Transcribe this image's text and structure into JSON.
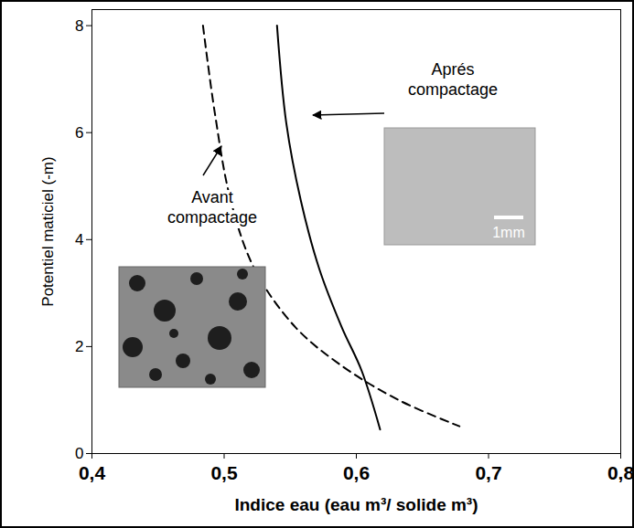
{
  "chart_data": {
    "type": "line",
    "x_label": "Indice eau (eau m³/ solide m³)",
    "y_label": "Potentiel maticiel (-m)",
    "xlim": [
      0.4,
      0.8
    ],
    "ylim": [
      0,
      8.3
    ],
    "xticks": [
      {
        "value": 0.4,
        "label": "0,4"
      },
      {
        "value": 0.5,
        "label": "0,5"
      },
      {
        "value": 0.6,
        "label": "0,6"
      },
      {
        "value": 0.7,
        "label": "0,7"
      },
      {
        "value": 0.8,
        "label": "0,8"
      }
    ],
    "yticks": [
      0,
      2,
      4,
      6,
      8
    ],
    "grid": false,
    "series": [
      {
        "name": "Avant compactage",
        "color": "#000000",
        "line_style": "dashed",
        "x": [
          0.484,
          0.493,
          0.505,
          0.523,
          0.554,
          0.589,
          0.632,
          0.678
        ],
        "values": [
          8.0,
          6.36,
          4.73,
          3.45,
          2.36,
          1.64,
          1.0,
          0.51
        ]
      },
      {
        "name": "Aprés compactage",
        "color": "#000000",
        "line_style": "solid",
        "x": [
          0.54,
          0.547,
          0.558,
          0.572,
          0.589,
          0.604,
          0.618
        ],
        "values": [
          8.0,
          6.18,
          4.73,
          3.45,
          2.36,
          1.55,
          0.45
        ]
      }
    ],
    "annotations": [
      "1mm"
    ]
  }
}
